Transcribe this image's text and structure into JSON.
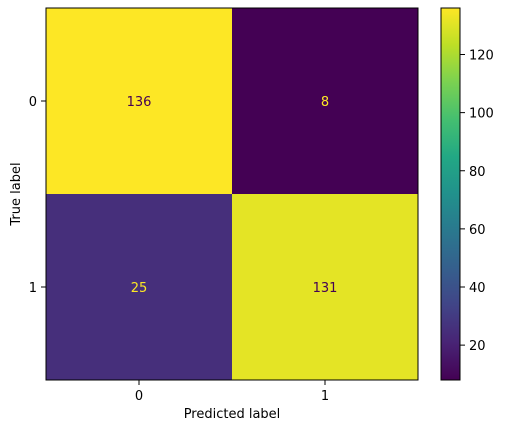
{
  "chart_data": {
    "type": "heatmap",
    "xlabel": "Predicted label",
    "ylabel": "True label",
    "x_categories": [
      "0",
      "1"
    ],
    "y_categories": [
      "0",
      "1"
    ],
    "values": [
      [
        136,
        8
      ],
      [
        25,
        131
      ]
    ],
    "colormap": "viridis",
    "colorbar": {
      "min": 8,
      "max": 136,
      "ticks": [
        20,
        40,
        60,
        80,
        100,
        120
      ]
    },
    "colors": {
      "dark_text": "#440154",
      "light_text": "#fde725"
    }
  }
}
